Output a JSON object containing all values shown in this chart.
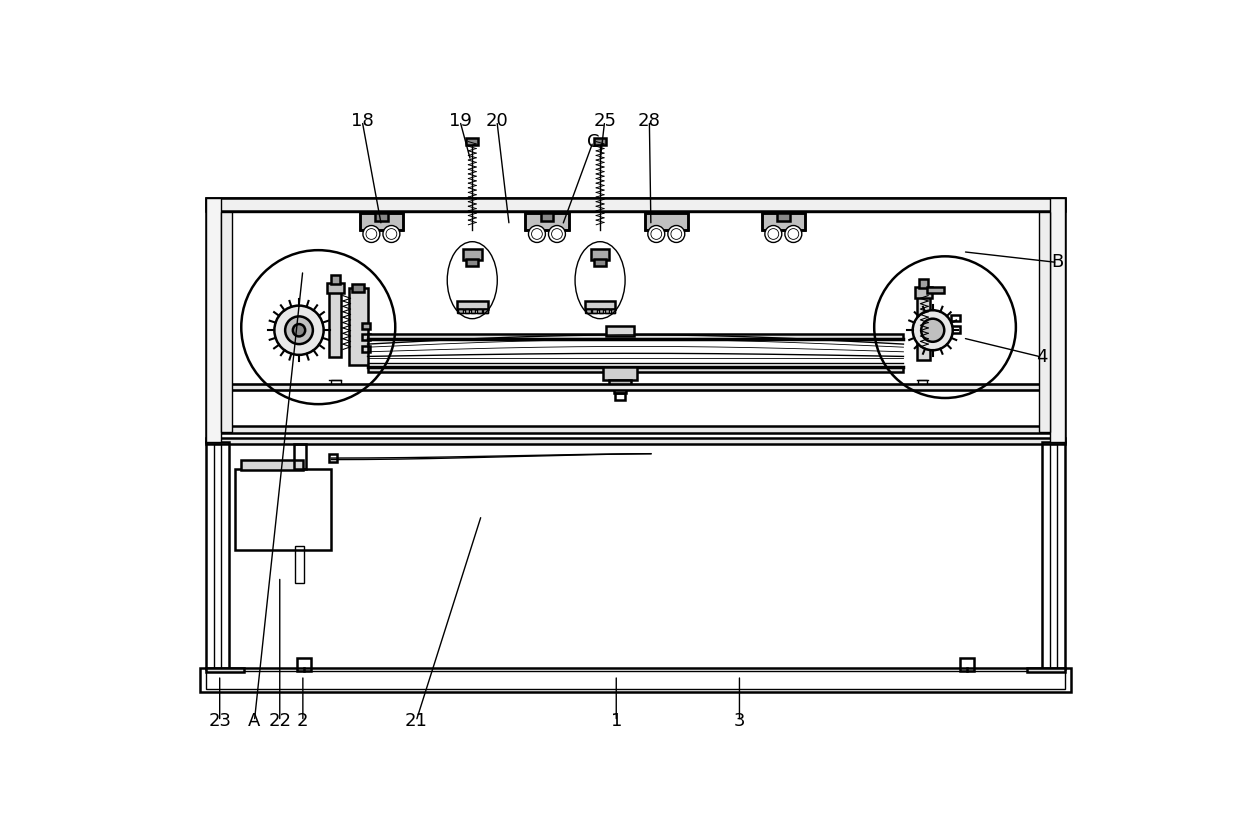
{
  "bg_color": "#ffffff",
  "lc": "#000000",
  "lw_main": 1.8,
  "lw_thin": 1.0,
  "lw_hair": 0.6,
  "label_fs": 13,
  "labels": [
    [
      "A",
      125,
      808,
      188,
      222
    ],
    [
      "18",
      265,
      28,
      290,
      164
    ],
    [
      "19",
      392,
      28,
      406,
      80
    ],
    [
      "20",
      440,
      28,
      456,
      164
    ],
    [
      "C",
      565,
      55,
      525,
      164
    ],
    [
      "25",
      580,
      28,
      574,
      80
    ],
    [
      "28",
      638,
      28,
      640,
      164
    ],
    [
      "B",
      1168,
      212,
      1045,
      198
    ],
    [
      "4",
      1148,
      335,
      1045,
      310
    ],
    [
      "1",
      595,
      808,
      595,
      748
    ],
    [
      "2",
      188,
      808,
      188,
      748
    ],
    [
      "3",
      755,
      808,
      755,
      748
    ],
    [
      "21",
      335,
      808,
      420,
      540
    ],
    [
      "22",
      158,
      808,
      158,
      620
    ],
    [
      "23",
      80,
      808,
      80,
      748
    ]
  ]
}
